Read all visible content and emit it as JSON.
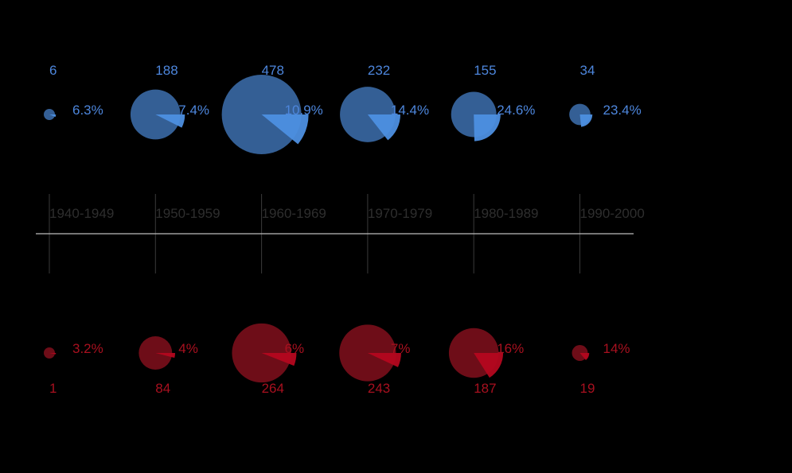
{
  "colors": {
    "background": "#000000",
    "top_circle": "#345f95",
    "top_wedge": "#4d8fe0",
    "top_text": "#4d86dc",
    "bottom_circle": "#6e0d18",
    "bottom_wedge": "#b4071f",
    "bottom_text": "#a8101f",
    "decade_label": "#2e2e2e",
    "axis_line": "#bdbdbd",
    "tick_line": "#3a3a3a"
  },
  "chart_data": {
    "type": "pie",
    "categories": [
      "1940-1949",
      "1950-1959",
      "1960-1969",
      "1970-1979",
      "1980-1989",
      "1990-2000"
    ],
    "series": [
      {
        "position": "top",
        "counts": [
          6,
          188,
          478,
          232,
          155,
          34
        ],
        "count_labels": [
          "6",
          "188",
          "478",
          "232",
          "155",
          "34"
        ],
        "percents": [
          6.3,
          7.4,
          10.9,
          14.4,
          24.6,
          23.4
        ],
        "percent_labels": [
          "6.3%",
          "7.4%",
          "10.9%",
          "14.4%",
          "24.6%",
          "23.4%"
        ]
      },
      {
        "position": "bottom",
        "counts": [
          1,
          84,
          264,
          243,
          187,
          19
        ],
        "count_labels": [
          "1",
          "84",
          "264",
          "243",
          "187",
          "19"
        ],
        "percents": [
          3.2,
          4,
          6,
          7,
          16,
          14
        ],
        "percent_labels": [
          "3.2%",
          "4%",
          "6%",
          "7%",
          "16%",
          "14%"
        ]
      }
    ]
  }
}
